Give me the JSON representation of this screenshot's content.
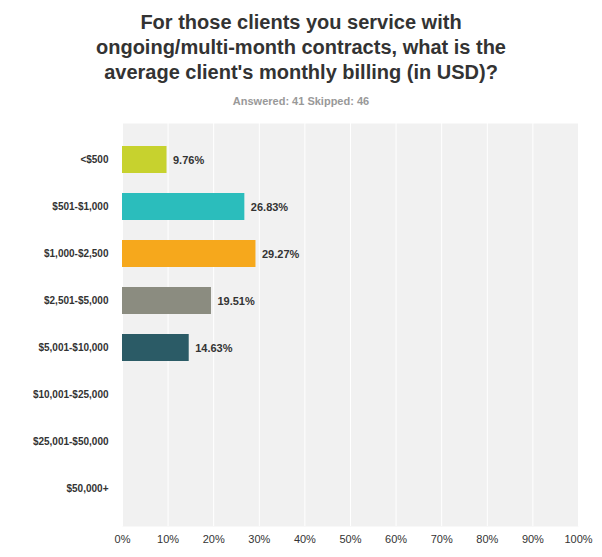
{
  "chart_data": {
    "type": "bar",
    "orientation": "horizontal",
    "title": "For those clients you service with ongoing/multi-month contracts, what is the average client's monthly billing (in USD)?",
    "subtitle": "Answered: 41   Skipped: 46",
    "categories": [
      "<$500",
      "$501-$1,000",
      "$1,000-$2,500",
      "$2,501-$5,000",
      "$5,001-$10,000",
      "$10,001-$25,000",
      "$25,001-$50,000",
      "$50,000+"
    ],
    "values": [
      9.76,
      26.83,
      29.27,
      19.51,
      14.63,
      0,
      0,
      0
    ],
    "value_labels": [
      "9.76%",
      "26.83%",
      "29.27%",
      "19.51%",
      "14.63%",
      null,
      null,
      null
    ],
    "colors": [
      "#c7d22e",
      "#2bbdbc",
      "#f6a81c",
      "#8b8c80",
      "#2b5b66",
      "#a3a3c2",
      "#d25f4a",
      "#6b8e3a"
    ],
    "data_labels": true,
    "xlim": [
      0,
      100
    ],
    "xticks": [
      {
        "value": 0,
        "label": "0%"
      },
      {
        "value": 10,
        "label": "10%"
      },
      {
        "value": 20,
        "label": "20%"
      },
      {
        "value": 30,
        "label": "30%"
      },
      {
        "value": 40,
        "label": "40%"
      },
      {
        "value": 50,
        "label": "50%"
      },
      {
        "value": 60,
        "label": "60%"
      },
      {
        "value": 70,
        "label": "70%"
      },
      {
        "value": 80,
        "label": "80%"
      },
      {
        "value": 90,
        "label": "90%"
      },
      {
        "value": 100,
        "label": "100%"
      }
    ],
    "grid": true
  }
}
